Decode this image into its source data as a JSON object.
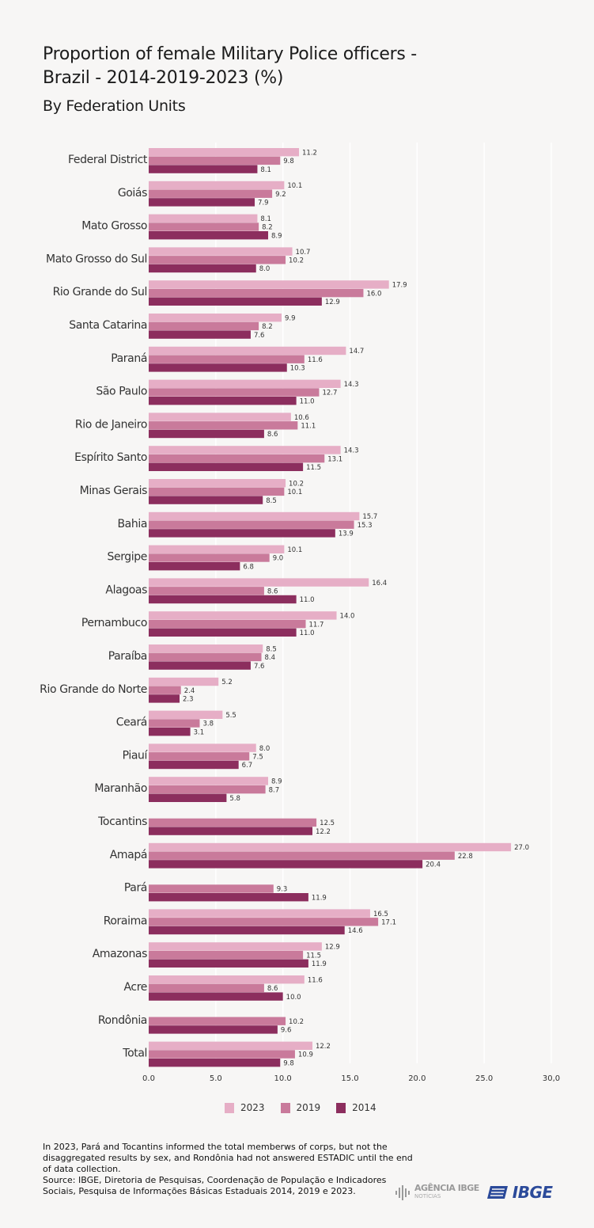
{
  "title_line1": "Proportion of female Military Police officers -",
  "title_line2": "Brazil - 2014-2019-2023 (%)",
  "subtitle": "By Federation Units",
  "chart_data": {
    "type": "bar",
    "orientation": "horizontal",
    "categories": [
      "Federal District",
      "Goiás",
      "Mato Grosso",
      "Mato Grosso do Sul",
      "Rio Grande do Sul",
      "Santa Catarina",
      "Paraná",
      "São Paulo",
      "Rio de Janeiro",
      "Espírito Santo",
      "Minas Gerais",
      "Bahia",
      "Sergipe",
      "Alagoas",
      "Pernambuco",
      "Paraíba",
      "Rio Grande do Norte",
      "Ceará",
      "Piauí",
      "Maranhão",
      "Tocantins",
      "Amapá",
      "Pará",
      "Roraima",
      "Amazonas",
      "Acre",
      "Rondônia",
      "Total"
    ],
    "series": [
      {
        "name": "2023",
        "color": "#e6aec6",
        "values": [
          11.2,
          10.1,
          8.1,
          10.7,
          17.9,
          9.9,
          14.7,
          14.3,
          10.6,
          14.3,
          10.2,
          15.7,
          10.1,
          16.4,
          14.0,
          8.5,
          5.2,
          5.5,
          8.0,
          8.9,
          null,
          27.0,
          null,
          16.5,
          12.9,
          11.6,
          null,
          12.2
        ]
      },
      {
        "name": "2019",
        "color": "#c97a9b",
        "values": [
          9.8,
          9.2,
          8.2,
          10.2,
          16.0,
          8.2,
          11.6,
          12.7,
          11.1,
          13.1,
          10.1,
          15.3,
          9.0,
          8.6,
          11.7,
          8.4,
          2.4,
          3.8,
          7.5,
          8.7,
          12.5,
          22.8,
          9.3,
          17.1,
          11.5,
          8.6,
          10.2,
          10.9
        ]
      },
      {
        "name": "2014",
        "color": "#8c2e5e",
        "values": [
          8.1,
          7.9,
          8.9,
          8.0,
          12.9,
          7.6,
          10.3,
          11.0,
          8.6,
          11.5,
          8.5,
          13.9,
          6.8,
          11.0,
          11.0,
          7.6,
          2.3,
          3.1,
          6.7,
          5.8,
          12.2,
          20.4,
          11.9,
          14.6,
          11.9,
          10.0,
          9.6,
          9.8
        ]
      }
    ],
    "value_labels": {
      "2023": [
        "11.2",
        "10.1",
        "8.1",
        "10.7",
        "17.9",
        "9.9",
        "14.7",
        "14.3",
        "10.6",
        "14.3",
        "10.2",
        "15.7",
        "10.1",
        "16.4",
        "14.0",
        "8.5",
        "5.2",
        "5.5",
        "8.0",
        "8.9",
        "",
        "27.0",
        "",
        "16.5",
        "12.9",
        "11.6",
        "",
        "12.2"
      ],
      "2019": [
        "9.8",
        "9.2",
        "8.2",
        "10.2",
        "16.0",
        "8.2",
        "11.6",
        "12.7",
        "11.1",
        "13.1",
        "10.1",
        "15.3",
        "9.0",
        "8.6",
        "11.7",
        "8.4",
        "2.4",
        "3.8",
        "7.5",
        "8.7",
        "12.5",
        "22.8",
        "9.3",
        "17.1",
        "11.5",
        "8.6",
        "10.2",
        "10.9"
      ],
      "2014": [
        "8.1",
        "7.9",
        "8.9",
        "8.0",
        "12.9",
        "7.6",
        "10.3",
        "11.0",
        "8.6",
        "11.5",
        "8.5",
        "13.9",
        "6.8",
        "11.0",
        "11.0",
        "7.6",
        "2.3",
        "3.1",
        "6.7",
        "5.8",
        "12.2",
        "20.4",
        "11.9",
        "14.6",
        "11.9",
        "10.0",
        "9.6",
        "9.8"
      ]
    },
    "xlim": [
      0,
      30
    ],
    "xticks": [
      "0.0",
      "5.0",
      "10.0",
      "15.0",
      "20.0",
      "25.0",
      "30,0"
    ],
    "grid": "vertical",
    "legend_position": "bottom"
  },
  "legend": [
    "2023",
    "2019",
    "2014"
  ],
  "footnote_line1": "In 2023, Pará and Tocantins informed the total memberws of corps, but not the disaggregated results by sex, and Rondônia had not answered ESTADIC until the end of data collection.",
  "footnote_line2": "Source: IBGE, Diretoria de Pesquisas, Coordenação de População e Indicadores Sociais, Pesquisa de Informações Básicas Estaduais 2014, 2019 e 2023.",
  "logos": {
    "agencia_line1": "AGÊNCIA IBGE",
    "agencia_line2": "NOTÍCIAS",
    "ibge": "IBGE"
  }
}
